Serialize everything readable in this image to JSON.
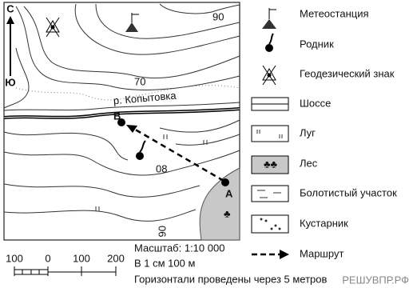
{
  "map": {
    "north": "С",
    "south": "Ю",
    "contour_labels": [
      "90",
      "70",
      "08",
      "06"
    ],
    "river": "р. Копытовка",
    "point_b": "В",
    "point_a": "А"
  },
  "legend": {
    "items": [
      "Метеостанция",
      "Родник",
      "Геодезический знак",
      "Шоссе",
      "Луг",
      "Лес",
      "Болотистый участок",
      "Кустарник",
      "Маршрут"
    ]
  },
  "scale": {
    "ticks": [
      "100",
      "0",
      "100",
      "200"
    ],
    "ratio": "Масштаб: 1:10 000",
    "per_cm": "В 1 см 100 м",
    "contour_interval": "Горизонтали проведены через 5 метров"
  },
  "watermark": "РЕШУВПР.РФ"
}
